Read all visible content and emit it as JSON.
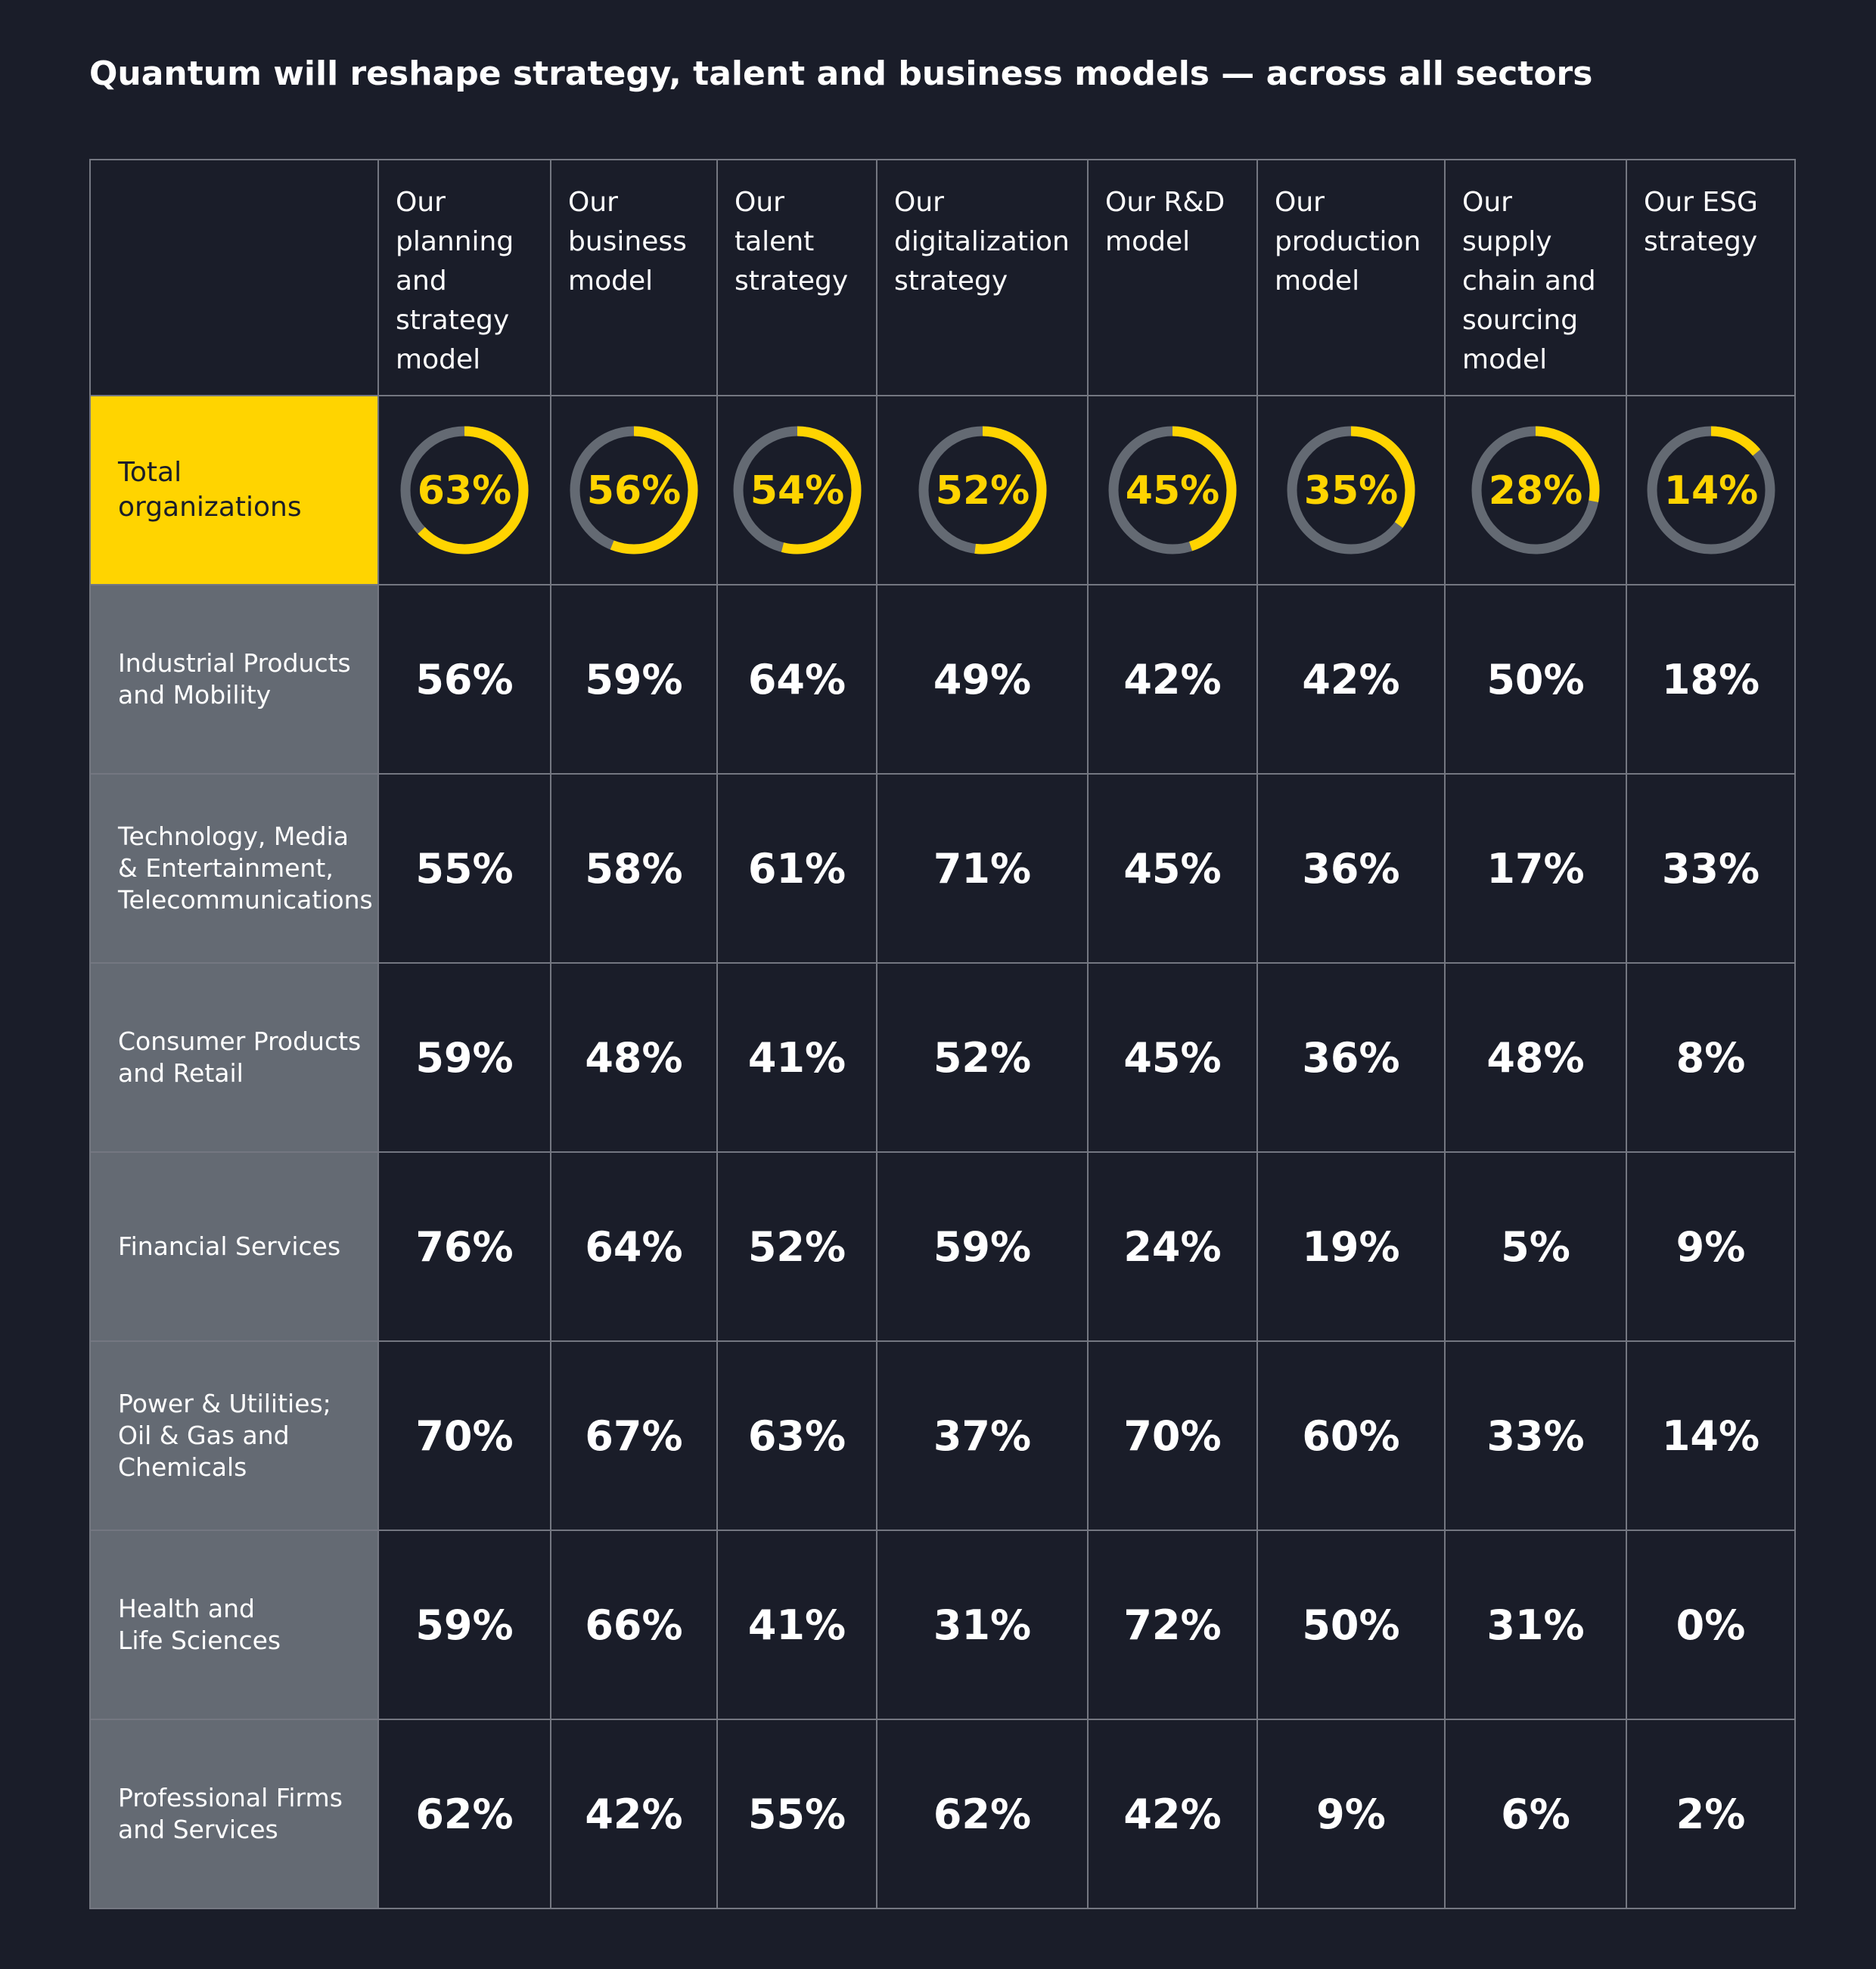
{
  "chart_data": {
    "type": "table",
    "title": "Quantum will reshape strategy, talent and business models — across all sectors",
    "columns": [
      "Our planning and strategy model",
      "Our business model",
      "Our talent strategy",
      "Our digitalization strategy",
      "Our R&D model",
      "Our production model",
      "Our supply chain and sourcing model",
      "Our ESG strategy"
    ],
    "columns_display": [
      "Our\nplanning\nand\nstrategy\nmodel",
      "Our\nbusiness\nmodel",
      "Our talent\nstrategy",
      "Our\ndigitalization\nstrategy",
      "Our R&D\nmodel",
      "Our\nproduction\nmodel",
      "Our\nsupply\nchain and\nsourcing\nmodel",
      "Our ESG\nstrategy"
    ],
    "total": {
      "label": "Total\norganizations",
      "values": [
        63,
        56,
        54,
        52,
        45,
        35,
        28,
        14
      ],
      "labels": [
        "63%",
        "56%",
        "54%",
        "52%",
        "45%",
        "35%",
        "28%",
        "14%"
      ]
    },
    "rows": [
      {
        "label": "Industrial Products\nand Mobility",
        "values": [
          "56%",
          "59%",
          "64%",
          "49%",
          "42%",
          "42%",
          "50%",
          "18%"
        ]
      },
      {
        "label": "Technology, Media\n& Entertainment,\nTelecommunications",
        "values": [
          "55%",
          "58%",
          "61%",
          "71%",
          "45%",
          "36%",
          "17%",
          "33%"
        ]
      },
      {
        "label": "Consumer Products\nand Retail",
        "values": [
          "59%",
          "48%",
          "41%",
          "52%",
          "45%",
          "36%",
          "48%",
          "8%"
        ]
      },
      {
        "label": "Financial Services",
        "values": [
          "76%",
          "64%",
          "52%",
          "59%",
          "24%",
          "19%",
          "5%",
          "9%"
        ]
      },
      {
        "label": "Power & Utilities;\nOil & Gas and\nChemicals",
        "values": [
          "70%",
          "67%",
          "63%",
          "37%",
          "70%",
          "60%",
          "33%",
          "14%"
        ]
      },
      {
        "label": "Health and\nLife Sciences",
        "values": [
          "59%",
          "66%",
          "41%",
          "31%",
          "72%",
          "50%",
          "31%",
          "0%"
        ]
      },
      {
        "label": "Professional Firms\nand Services",
        "values": [
          "62%",
          "42%",
          "55%",
          "62%",
          "42%",
          "9%",
          "6%",
          "2%"
        ]
      }
    ]
  },
  "colors": {
    "background": "#1a1d29",
    "accent": "#ffd400",
    "row_header": "#646a73",
    "ring_track": "#646a73",
    "grid_line": "#747781"
  }
}
